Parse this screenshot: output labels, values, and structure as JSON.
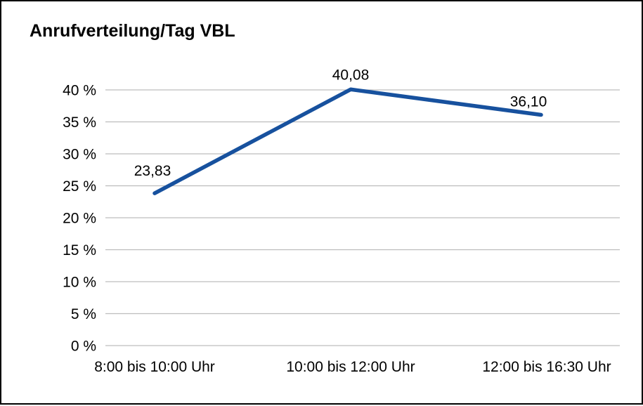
{
  "chart_data": {
    "type": "line",
    "title": "Anrufverteilung/Tag VBL",
    "categories": [
      "8:00 bis 10:00 Uhr",
      "10:00 bis 12:00 Uhr",
      "12:00 bis 16:30 Uhr"
    ],
    "values": [
      23.83,
      40.08,
      36.1
    ],
    "data_labels": [
      "23,83",
      "40,08",
      "36,10"
    ],
    "y_ticks": [
      "0 %",
      "5 %",
      "10 %",
      "15 %",
      "20 %",
      "25 %",
      "30 %",
      "35 %",
      "40 %"
    ],
    "y_tick_values": [
      0,
      5,
      10,
      15,
      20,
      25,
      30,
      35,
      40
    ],
    "ylim": [
      0,
      40
    ],
    "grid": true,
    "legend": false,
    "xlabel": "",
    "ylabel": "",
    "line_color": "#17519e",
    "grid_color": "#bdbdbd"
  }
}
